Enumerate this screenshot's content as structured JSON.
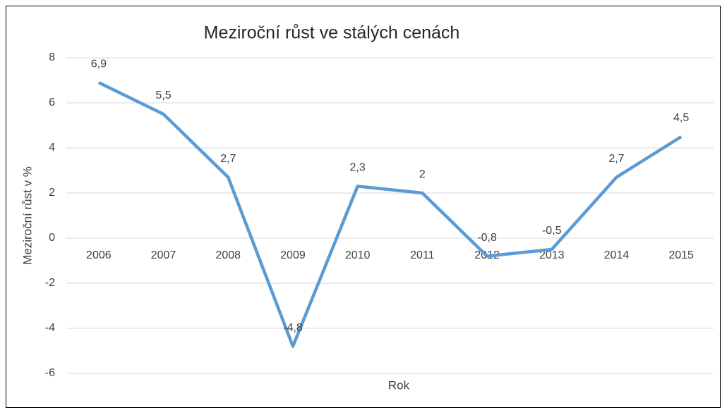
{
  "chart_data": {
    "type": "line",
    "title": "Meziroční růst ve stálých cenách",
    "x_label": "Rok",
    "y_label": "Meziroční růst v %",
    "categories": [
      "2006",
      "2007",
      "2008",
      "2009",
      "2010",
      "2011",
      "2012",
      "2013",
      "2014",
      "2015"
    ],
    "series": [
      {
        "name": "Meziroční růst v %",
        "color": "#5b9bd5",
        "values": [
          6.9,
          5.5,
          2.7,
          -4.8,
          2.3,
          2,
          -0.8,
          -0.5,
          2.7,
          4.5
        ],
        "value_labels": [
          "6,9",
          "5,5",
          "2,7",
          "-4,8",
          "2,3",
          "2",
          "-0,8",
          "-0,5",
          "2,7",
          "4,5"
        ]
      }
    ],
    "ylim": [
      -6,
      8
    ],
    "yticks": [
      -6,
      -4,
      -2,
      0,
      2,
      4,
      6,
      8
    ],
    "grid": true
  }
}
